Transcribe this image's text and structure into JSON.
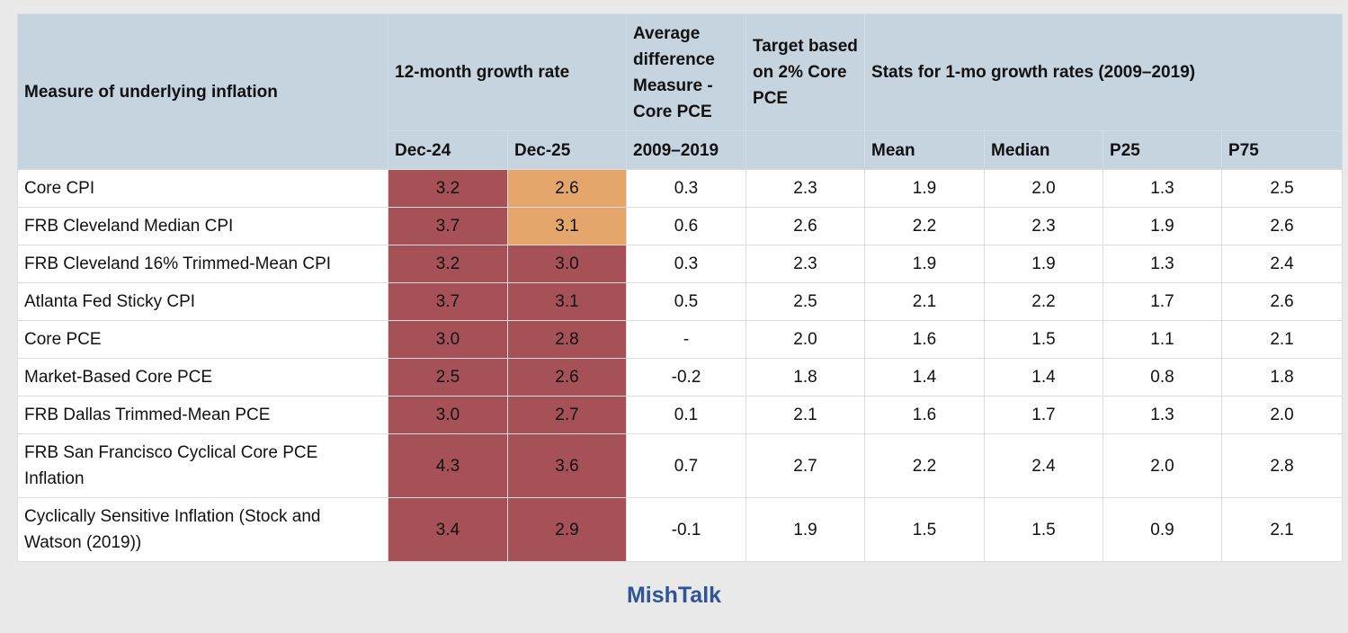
{
  "table": {
    "header": {
      "measure": "Measure of underlying inflation",
      "growth": "12-month growth rate",
      "avg_diff": "Average difference Measure - Core PCE",
      "target": "Target based on 2% Core PCE",
      "stats": "Stats for 1-mo growth rates (2009–2019)",
      "sub": [
        "Dec-24",
        "Dec-25",
        "2009–2019",
        "Mean",
        "Median",
        "P25",
        "P75"
      ]
    },
    "rows": [
      {
        "measure": "Core CPI",
        "values": [
          "3.2",
          "2.6",
          "0.3",
          "2.3",
          "1.9",
          "2.0",
          "1.3",
          "2.5"
        ],
        "colors": [
          "#a55157",
          "#e5a66c"
        ]
      },
      {
        "measure": "FRB Cleveland Median CPI",
        "values": [
          "3.7",
          "3.1",
          "0.6",
          "2.6",
          "2.2",
          "2.3",
          "1.9",
          "2.6"
        ],
        "colors": [
          "#a55157",
          "#e5a66c"
        ]
      },
      {
        "measure": "FRB Cleveland 16% Trimmed-Mean CPI",
        "values": [
          "3.2",
          "3.0",
          "0.3",
          "2.3",
          "1.9",
          "1.9",
          "1.3",
          "2.4"
        ],
        "colors": [
          "#a55157",
          "#a55157"
        ]
      },
      {
        "measure": "Atlanta Fed Sticky CPI",
        "values": [
          "3.7",
          "3.1",
          "0.5",
          "2.5",
          "2.1",
          "2.2",
          "1.7",
          "2.6"
        ],
        "colors": [
          "#a55157",
          "#a55157"
        ]
      },
      {
        "measure": "Core PCE",
        "values": [
          "3.0",
          "2.8",
          "-",
          "2.0",
          "1.6",
          "1.5",
          "1.1",
          "2.1"
        ],
        "colors": [
          "#a55157",
          "#a55157"
        ]
      },
      {
        "measure": "Market-Based Core PCE",
        "values": [
          "2.5",
          "2.6",
          "-0.2",
          "1.8",
          "1.4",
          "1.4",
          "0.8",
          "1.8"
        ],
        "colors": [
          "#a55157",
          "#a55157"
        ]
      },
      {
        "measure": "FRB Dallas Trimmed-Mean PCE",
        "values": [
          "3.0",
          "2.7",
          "0.1",
          "2.1",
          "1.6",
          "1.7",
          "1.3",
          "2.0"
        ],
        "colors": [
          "#a55157",
          "#a55157"
        ]
      },
      {
        "measure": "FRB San Francisco Cyclical Core PCE Inflation",
        "values": [
          "4.3",
          "3.6",
          "0.7",
          "2.7",
          "2.2",
          "2.4",
          "2.0",
          "2.8"
        ],
        "colors": [
          "#a55157",
          "#a55157"
        ]
      },
      {
        "measure": "Cyclically Sensitive Inflation (Stock and Watson (2019))",
        "values": [
          "3.4",
          "2.9",
          "-0.1",
          "1.9",
          "1.5",
          "1.5",
          "0.9",
          "2.1"
        ],
        "colors": [
          "#a55157",
          "#a55157"
        ]
      }
    ]
  },
  "footer": "MishTalk"
}
